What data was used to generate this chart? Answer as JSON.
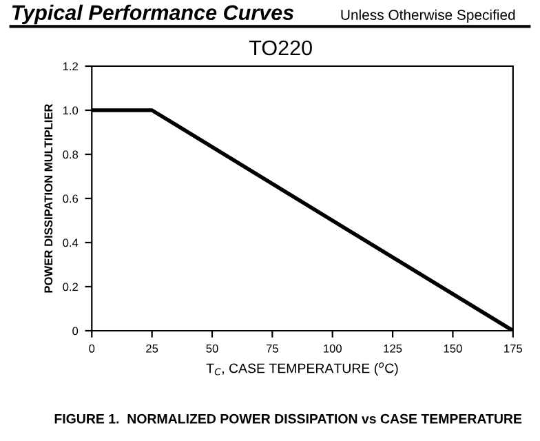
{
  "chart_data": {
    "type": "line",
    "title": "Typical Performance Curves",
    "subtitle": "Unless Otherwise Specified",
    "annotations": [
      "TO220",
      "FIGURE 1.  NORMALIZED POWER DISSIPATION vs CASE TEMPERATURE"
    ],
    "xlabel": "T$_{C}$, CASE TEMPERATURE ($^{o}$C)",
    "ylabel": "POWER DISSIPATION MULTIPLIER",
    "series": [
      {
        "x": [
          0,
          25,
          175
        ],
        "values": [
          1.0,
          1.0,
          0.0
        ],
        "color": "#000000"
      }
    ],
    "xlim": [
      0,
      175
    ],
    "ylim": [
      0,
      1.2
    ],
    "xticks": [
      0,
      25,
      50,
      75,
      100,
      125,
      150,
      175
    ],
    "yticks": [
      0,
      0.2,
      0.4,
      0.6,
      0.8,
      {
        "value": 1,
        "label": "1.0"
      },
      1.2
    ],
    "grid": false,
    "line_style": "solid"
  }
}
